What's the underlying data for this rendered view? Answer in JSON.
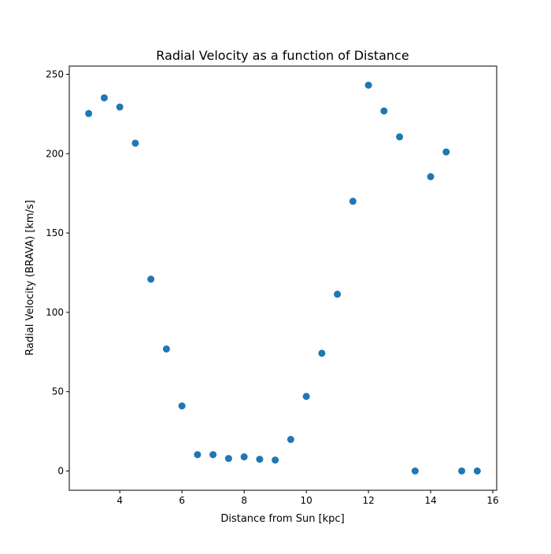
{
  "chart_data": {
    "type": "scatter",
    "title": "Radial Velocity as a function of Distance",
    "xlabel": "Distance from Sun [kpc]",
    "ylabel": "Radial Velocity (BRAVA) [km/s]",
    "xlim": [
      2.375,
      16.125
    ],
    "ylim": [
      -12.15,
      255.2
    ],
    "xticks": [
      4,
      6,
      8,
      10,
      12,
      14,
      16
    ],
    "yticks": [
      0,
      50,
      100,
      150,
      200,
      250
    ],
    "grid": false,
    "legend": "none",
    "marker_color": "#1f77b4",
    "x": [
      3.0,
      3.5,
      4.0,
      4.5,
      5.0,
      5.5,
      6.0,
      6.5,
      7.0,
      7.5,
      8.0,
      8.5,
      9.0,
      9.5,
      10.0,
      10.5,
      11.0,
      11.5,
      12.0,
      12.5,
      13.0,
      13.5,
      14.0,
      14.5,
      15.0,
      15.5
    ],
    "y": [
      225.3,
      235.2,
      229.4,
      206.6,
      120.9,
      76.9,
      41.0,
      10.3,
      10.3,
      7.9,
      8.9,
      7.4,
      6.9,
      19.9,
      47.0,
      74.2,
      111.4,
      170.0,
      243.2,
      226.9,
      210.6,
      0.0,
      185.5,
      201.1,
      0.0,
      0.0
    ]
  }
}
